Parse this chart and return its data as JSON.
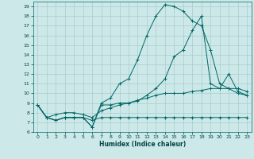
{
  "xlabel": "Humidex (Indice chaleur)",
  "bg_color": "#cce8e8",
  "grid_color": "#aacccc",
  "line_color": "#006666",
  "xlim": [
    -0.5,
    23.5
  ],
  "ylim": [
    6,
    19.5
  ],
  "xticks": [
    0,
    1,
    2,
    3,
    4,
    5,
    6,
    7,
    8,
    9,
    10,
    11,
    12,
    13,
    14,
    15,
    16,
    17,
    18,
    19,
    20,
    21,
    22,
    23
  ],
  "yticks": [
    6,
    7,
    8,
    9,
    10,
    11,
    12,
    13,
    14,
    15,
    16,
    17,
    18,
    19
  ],
  "series": [
    {
      "x": [
        0,
        1,
        2,
        3,
        4,
        5,
        6,
        7,
        8,
        9,
        10,
        11,
        12,
        13,
        14,
        15,
        16,
        17,
        18,
        19,
        20,
        21,
        22,
        23
      ],
      "y": [
        8.8,
        7.5,
        7.2,
        7.5,
        7.5,
        7.5,
        7.2,
        7.5,
        7.5,
        7.5,
        7.5,
        7.5,
        7.5,
        7.5,
        7.5,
        7.5,
        7.5,
        7.5,
        7.5,
        7.5,
        7.5,
        7.5,
        7.5,
        7.5
      ]
    },
    {
      "x": [
        0,
        1,
        2,
        3,
        4,
        5,
        6,
        7,
        8,
        9,
        10,
        11,
        12,
        13,
        14,
        15,
        16,
        17,
        18,
        19,
        20,
        21,
        22,
        23
      ],
      "y": [
        8.8,
        7.5,
        7.8,
        8.0,
        8.0,
        7.8,
        7.5,
        8.2,
        8.5,
        8.8,
        9.0,
        9.3,
        9.5,
        9.8,
        10.0,
        10.0,
        10.0,
        10.2,
        10.3,
        10.5,
        10.5,
        10.5,
        10.5,
        10.2
      ]
    },
    {
      "x": [
        0,
        1,
        2,
        3,
        4,
        5,
        6,
        7,
        8,
        9,
        10,
        11,
        12,
        13,
        14,
        15,
        16,
        17,
        18,
        19,
        20,
        21,
        22,
        23
      ],
      "y": [
        8.8,
        7.5,
        7.2,
        7.5,
        7.5,
        7.5,
        6.5,
        9.0,
        9.5,
        11.0,
        11.5,
        13.5,
        16.0,
        18.0,
        19.2,
        19.0,
        18.5,
        17.5,
        17.0,
        14.5,
        11.0,
        10.5,
        10.0,
        9.8
      ]
    },
    {
      "x": [
        0,
        1,
        2,
        3,
        4,
        5,
        6,
        7,
        8,
        9,
        10,
        11,
        12,
        13,
        14,
        15,
        16,
        17,
        18,
        19,
        20,
        21,
        22,
        23
      ],
      "y": [
        8.8,
        7.5,
        7.2,
        7.5,
        7.5,
        7.5,
        6.5,
        8.8,
        8.8,
        9.0,
        9.0,
        9.2,
        9.8,
        10.5,
        11.5,
        13.8,
        14.5,
        16.5,
        18.0,
        11.0,
        10.5,
        12.0,
        10.2,
        9.8
      ]
    }
  ]
}
